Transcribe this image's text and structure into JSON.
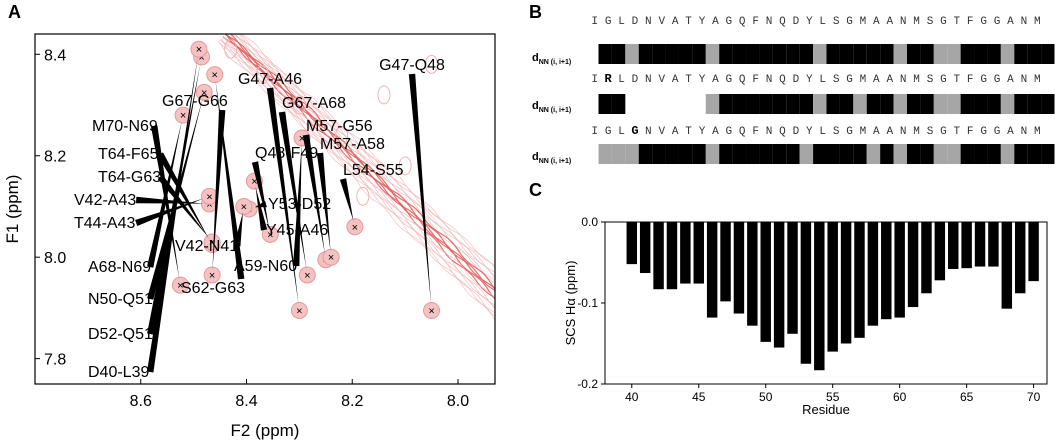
{
  "panels": {
    "a": "A",
    "b": "B",
    "c": "C"
  },
  "chart_data": [
    {
      "type": "scatter",
      "title": "",
      "xlabel": "F2 (ppm)",
      "ylabel": "F1 (ppm)",
      "xlim": [
        8.8,
        7.93
      ],
      "ylim": [
        8.44,
        7.75
      ],
      "xticks": [
        "8.6",
        "8.4",
        "8.2",
        "8.0"
      ],
      "xtick_values": [
        8.6,
        8.4,
        8.2,
        8.0
      ],
      "yticks": [
        "7.8",
        "8.0",
        "8.2",
        "8.4"
      ],
      "ytick_values": [
        7.8,
        8.0,
        8.2,
        8.4
      ],
      "peaks": [
        {
          "label": "G47-Q48",
          "x": 8.05,
          "y": 7.895
        },
        {
          "label": "G47-A46",
          "x": 8.3,
          "y": 7.895
        },
        {
          "label": "G67-G66",
          "x": 8.465,
          "y": 7.965
        },
        {
          "label": "G67-A68",
          "x": 8.285,
          "y": 7.965
        },
        {
          "label": "M70-N69",
          "x": 8.525,
          "y": 7.945
        },
        {
          "label": "M57-G56",
          "x": 8.25,
          "y": 7.995
        },
        {
          "label": "M57-A58",
          "x": 8.24,
          "y": 8.0
        },
        {
          "label": "Q48-F49",
          "x": 8.355,
          "y": 8.045
        },
        {
          "label": "L54-S55",
          "x": 8.195,
          "y": 8.06
        },
        {
          "label": "T64-F65",
          "x": 8.465,
          "y": 8.025
        },
        {
          "label": "T64-G63",
          "x": 8.465,
          "y": 8.03
        },
        {
          "label": "V42-A43",
          "x": 8.47,
          "y": 8.105
        },
        {
          "label": "T44-A43",
          "x": 8.47,
          "y": 8.12
        },
        {
          "label": "Y53-D52",
          "x": 8.395,
          "y": 8.095
        },
        {
          "label": "V42-N41",
          "x": 8.405,
          "y": 8.1
        },
        {
          "label": "Y45-A46",
          "x": 8.385,
          "y": 8.15
        },
        {
          "label": "A59-N60",
          "x": 8.295,
          "y": 8.235
        },
        {
          "label": "A68-N69",
          "x": 8.52,
          "y": 8.28
        },
        {
          "label": "S62-G63",
          "x": 8.46,
          "y": 8.36
        },
        {
          "label": "N50-Q51",
          "x": 8.48,
          "y": 8.325
        },
        {
          "label": "D52-Q51",
          "x": 8.485,
          "y": 8.395
        },
        {
          "label": "D40-L39",
          "x": 8.49,
          "y": 8.41
        }
      ]
    },
    {
      "type": "table",
      "title": "",
      "row_label": "dNN (i, i+1)",
      "row_label_main": "d",
      "row_label_sub": "NN (i, i+1)",
      "sequences": [
        {
          "residues": [
            "I",
            "G",
            "L",
            "D",
            "N",
            "V",
            "A",
            "T",
            "Y",
            "A",
            "G",
            "Q",
            "F",
            "N",
            "Q",
            "D",
            "Y",
            "L",
            "S",
            "G",
            "M",
            "A",
            "A",
            "N",
            "M",
            "S",
            "G",
            "T",
            "F",
            "G",
            "G",
            "A",
            "N",
            "M"
          ],
          "bold_index": -1
        },
        {
          "residues": [
            "I",
            "R",
            "L",
            "D",
            "N",
            "V",
            "A",
            "T",
            "Y",
            "A",
            "G",
            "Q",
            "F",
            "N",
            "Q",
            "D",
            "Y",
            "L",
            "S",
            "G",
            "M",
            "A",
            "A",
            "N",
            "M",
            "S",
            "G",
            "T",
            "F",
            "G",
            "G",
            "A",
            "N",
            "M"
          ],
          "bold_index": 1
        },
        {
          "residues": [
            "I",
            "G",
            "L",
            "G",
            "N",
            "V",
            "A",
            "T",
            "Y",
            "A",
            "G",
            "Q",
            "F",
            "N",
            "Q",
            "D",
            "Y",
            "L",
            "S",
            "G",
            "M",
            "A",
            "A",
            "N",
            "M",
            "S",
            "G",
            "T",
            "F",
            "G",
            "G",
            "A",
            "N",
            "M"
          ],
          "bold_index": 3
        }
      ],
      "bar_rows": [
        [
          "k",
          "k",
          "g",
          "k",
          "k",
          "k",
          "k",
          "k",
          "g",
          "k",
          "k",
          "k",
          "k",
          "k",
          "k",
          "k",
          "g",
          "k",
          "k",
          "k",
          "k",
          "k",
          "g",
          "k",
          "k",
          "g",
          "g",
          "k",
          "k",
          "k",
          "g",
          "k",
          "k",
          "k"
        ],
        [
          "k",
          "k",
          "n",
          "n",
          "n",
          "n",
          "n",
          "n",
          "g",
          "k",
          "k",
          "k",
          "k",
          "k",
          "k",
          "k",
          "g",
          "k",
          "k",
          "g",
          "k",
          "k",
          "g",
          "k",
          "k",
          "g",
          "g",
          "k",
          "k",
          "k",
          "g",
          "k",
          "k",
          "k"
        ],
        [
          "g",
          "g",
          "g",
          "k",
          "k",
          "k",
          "k",
          "k",
          "g",
          "k",
          "k",
          "k",
          "k",
          "k",
          "k",
          "g",
          "k",
          "k",
          "k",
          "k",
          "g",
          "k",
          "g",
          "k",
          "k",
          "g",
          "g",
          "k",
          "k",
          "k",
          "g",
          "k",
          "k",
          "k"
        ]
      ],
      "bar_colors": {
        "k": "#000000",
        "g": "#a6a6a6"
      }
    },
    {
      "type": "bar",
      "title": "",
      "xlabel": "Residue",
      "ylabel": "SCS Hα (ppm)",
      "x": [
        40,
        41,
        42,
        43,
        44,
        45,
        46,
        47,
        48,
        49,
        50,
        51,
        52,
        53,
        54,
        55,
        56,
        57,
        58,
        59,
        60,
        61,
        62,
        63,
        64,
        65,
        66,
        67,
        68,
        69,
        70
      ],
      "values": [
        -0.052,
        -0.063,
        -0.083,
        -0.083,
        -0.076,
        -0.076,
        -0.118,
        -0.098,
        -0.113,
        -0.128,
        -0.148,
        -0.155,
        -0.138,
        -0.175,
        -0.183,
        -0.16,
        -0.15,
        -0.143,
        -0.128,
        -0.12,
        -0.118,
        -0.105,
        -0.088,
        -0.072,
        -0.058,
        -0.057,
        -0.055,
        -0.055,
        -0.107,
        -0.088,
        -0.073
      ],
      "xlim": [
        38,
        71
      ],
      "ylim": [
        -0.2,
        0.0
      ],
      "xticks": [
        "40",
        "45",
        "50",
        "55",
        "60",
        "65",
        "70"
      ],
      "xtick_values": [
        40,
        45,
        50,
        55,
        60,
        65,
        70
      ],
      "yticks": [
        "0.0",
        "-0.1",
        "-0.2"
      ],
      "ytick_values": [
        0.0,
        -0.1,
        -0.2
      ]
    }
  ],
  "colors": {
    "spectrum": "#e36060",
    "spectrum_light": "#f2b4b4",
    "peak_marker": "#000000",
    "gray_bar": "#a6a6a6"
  }
}
